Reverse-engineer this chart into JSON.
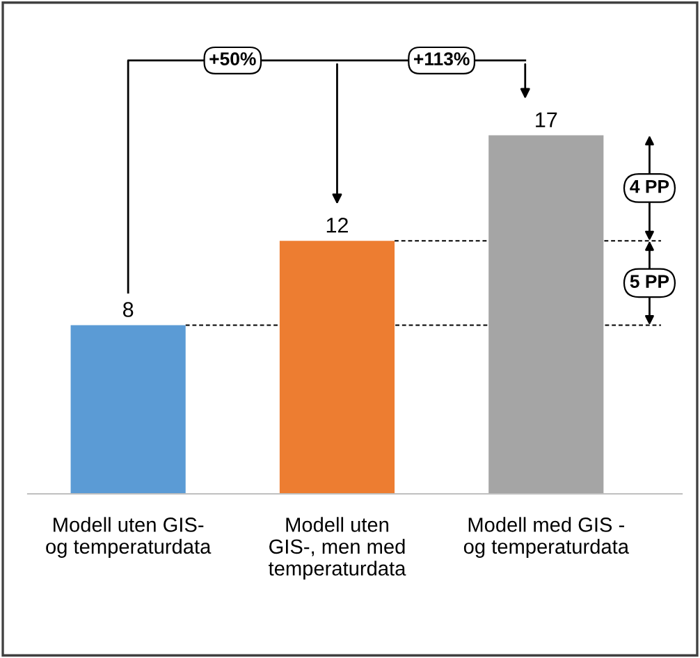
{
  "chart_data": {
    "type": "bar",
    "categories": [
      "Modell uten GIS-\nog temperaturdata",
      "Modell uten\nGIS-, men med\ntemperaturdata",
      "Modell med GIS -\nog temperaturdata"
    ],
    "values": [
      8,
      12,
      17
    ],
    "colors": [
      "#5b9bd5",
      "#ed7d31",
      "#a5a5a5"
    ],
    "data_labels": true,
    "annotations": [
      "+50%",
      "+113%",
      "4 PP",
      "5 PP"
    ],
    "ref_lines": [
      {
        "axis": "y",
        "value": 8,
        "label": null,
        "color": "#000000",
        "line_style": "dashed"
      },
      {
        "axis": "y",
        "value": 12,
        "label": null,
        "color": "#000000",
        "line_style": "dashed"
      }
    ],
    "grid": false
  }
}
